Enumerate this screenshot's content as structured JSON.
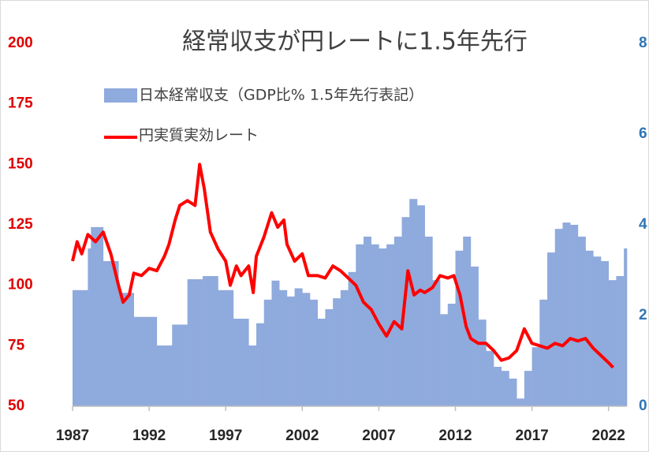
{
  "chart_data": {
    "type": "combo",
    "title": "経常収支が円レートに1.5年先行",
    "xlim": [
      1987,
      2023.2
    ],
    "xticks": [
      1987,
      1992,
      1997,
      2002,
      2007,
      2012,
      2017,
      2022
    ],
    "ylim": [
      50,
      200
    ],
    "yticks": [
      50,
      75,
      100,
      125,
      150,
      175,
      200
    ],
    "y2lim": [
      0,
      8
    ],
    "y2ticks": [
      0,
      2,
      4,
      6,
      8
    ],
    "series": [
      {
        "name": "日本経常収支（GDP比% 1.5年先行表記）",
        "color": "#8faadc",
        "type": "bar",
        "axis": "y2",
        "x": [
          1987,
          1988,
          1988.2,
          1989,
          1990,
          1991,
          1992.5,
          1993.5,
          1994.5,
          1995.5,
          1996.5,
          1997.5,
          1998.5,
          1999,
          1999.5,
          2000,
          2000.5,
          2001,
          2001.5,
          2002,
          2002.5,
          2003,
          2003.5,
          2004,
          2004.5,
          2005,
          2005.5,
          2006,
          2006.5,
          2007,
          2007.5,
          2008,
          2008.5,
          2009,
          2009.5,
          2010,
          2010.5,
          2011,
          2011.5,
          2012,
          2012.5,
          2013,
          2013.5,
          2014,
          2014.5,
          2015,
          2015.5,
          2016,
          2016.5,
          2017,
          2017.5,
          2018,
          2018.5,
          2019,
          2019.5,
          2020,
          2020.5,
          2021,
          2021.5,
          2022,
          2022.5,
          2023
        ],
        "values": [
          2.56,
          3.48,
          3.95,
          3.2,
          2.5,
          1.97,
          1.34,
          1.8,
          2.8,
          2.87,
          2.56,
          1.93,
          1.34,
          1.83,
          2.35,
          2.77,
          2.56,
          2.42,
          2.6,
          2.5,
          2.35,
          1.93,
          2.14,
          2.38,
          2.56,
          2.96,
          3.57,
          3.74,
          3.57,
          3.48,
          3.57,
          3.74,
          4.17,
          4.57,
          4.43,
          3.74,
          2.78,
          2.03,
          2.26,
          3.43,
          3.74,
          3.08,
          1.91,
          1.22,
          0.87,
          0.78,
          0.61,
          0.17,
          0.78,
          1.3,
          2.35,
          3.39,
          3.91,
          4.05,
          4.0,
          3.74,
          3.43,
          3.3,
          3.2,
          2.78,
          2.87,
          3.48
        ]
      },
      {
        "name": "円実質実効レート",
        "color": "#ff0000",
        "type": "line",
        "x": [
          1987,
          1987.3,
          1987.6,
          1988,
          1988.5,
          1989,
          1989.5,
          1990,
          1990.3,
          1990.7,
          1991,
          1991.5,
          1992,
          1992.5,
          1993,
          1993.3,
          1993.7,
          1994,
          1994.5,
          1995,
          1995.3,
          1995.6,
          1996,
          1996.5,
          1997,
          1997.3,
          1997.7,
          1998,
          1998.5,
          1998.8,
          1999,
          1999.5,
          2000,
          2000.4,
          2000.8,
          2001,
          2001.5,
          2002,
          2002.4,
          2003,
          2003.5,
          2004,
          2004.5,
          2005,
          2005.5,
          2006,
          2006.5,
          2007,
          2007.5,
          2008,
          2008.5,
          2008.9,
          2009.3,
          2009.7,
          2010,
          2010.5,
          2011,
          2011.5,
          2011.9,
          2012.3,
          2012.7,
          2013,
          2013.5,
          2014,
          2014.5,
          2015,
          2015.5,
          2016,
          2016.5,
          2017,
          2017.5,
          2018,
          2018.5,
          2019,
          2019.5,
          2020,
          2020.5,
          2021,
          2021.5,
          2022,
          2022.3
        ],
        "values": [
          110,
          118,
          113,
          121,
          118,
          122,
          113,
          100,
          93,
          96,
          105,
          104,
          107,
          106,
          112,
          117,
          127,
          133,
          135,
          133,
          150,
          140,
          122,
          115,
          110,
          100,
          108,
          104,
          108,
          97,
          112,
          120,
          130,
          124,
          127,
          117,
          110,
          113,
          104,
          104,
          103,
          108,
          106,
          103,
          100,
          93,
          90,
          84,
          79,
          85,
          82,
          106,
          96,
          98,
          97,
          99,
          104,
          103,
          104,
          96,
          83,
          78,
          76,
          76,
          73,
          69,
          70,
          73,
          82,
          76,
          75,
          74,
          76,
          75,
          78,
          77,
          78,
          74,
          71,
          68,
          66
        ]
      }
    ]
  }
}
